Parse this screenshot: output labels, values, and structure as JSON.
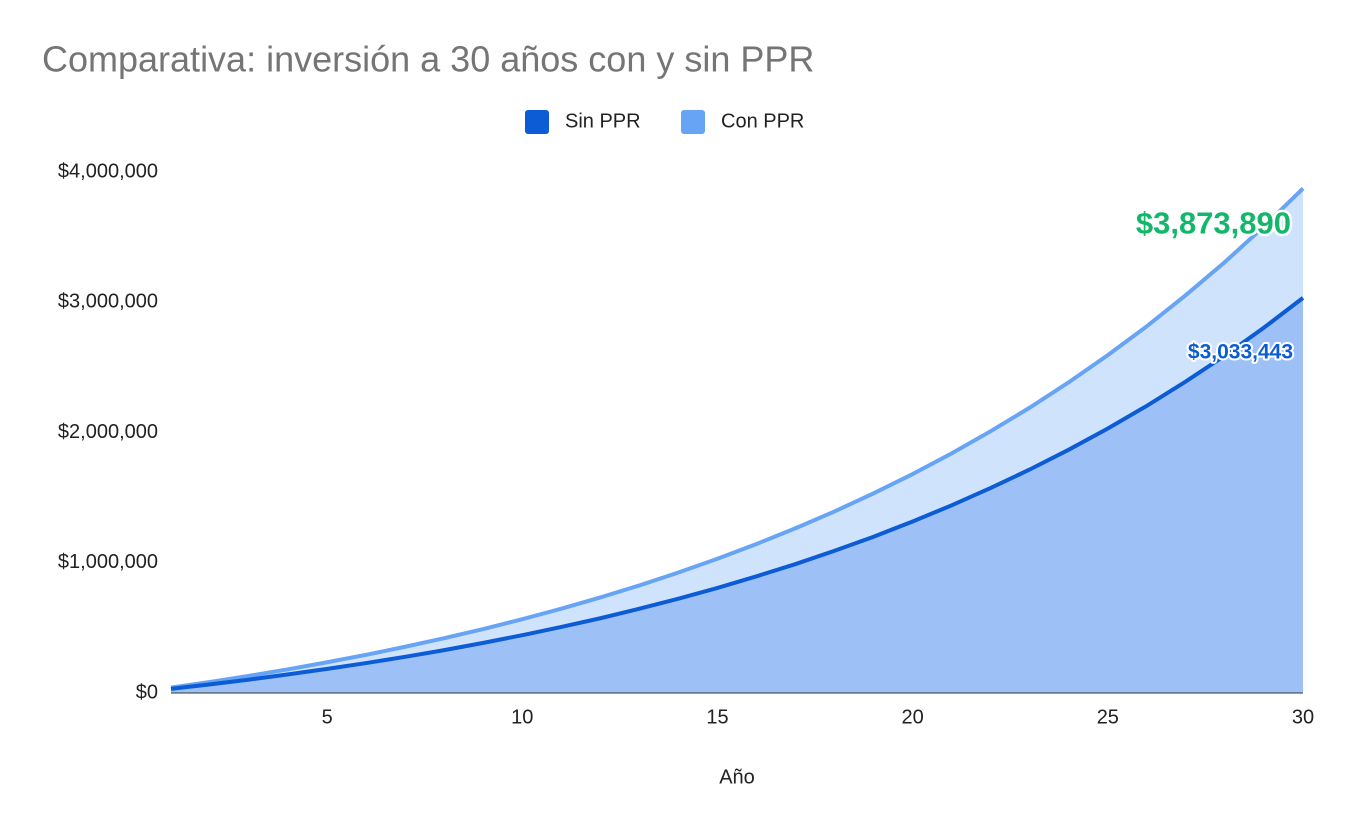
{
  "chart_data": {
    "type": "area",
    "title": "Comparativa: inversión a 30 años con y sin PPR",
    "x_label": "Año",
    "x": [
      1,
      2,
      3,
      4,
      5,
      6,
      7,
      8,
      9,
      10,
      11,
      12,
      13,
      14,
      15,
      16,
      17,
      18,
      19,
      20,
      21,
      22,
      23,
      24,
      25,
      26,
      27,
      28,
      29,
      30
    ],
    "xlim": [
      1,
      30
    ],
    "xticks": [
      5,
      10,
      15,
      20,
      25,
      30
    ],
    "ylim": [
      0,
      4000000
    ],
    "yticks": [
      {
        "value": 0,
        "label": "$0"
      },
      {
        "value": 1000000,
        "label": "$1,000,000"
      },
      {
        "value": 2000000,
        "label": "$2,000,000"
      },
      {
        "value": 3000000,
        "label": "$3,000,000"
      },
      {
        "value": 4000000,
        "label": "$4,000,000"
      }
    ],
    "legend": "top",
    "series": [
      {
        "name": "Sin PPR",
        "color": "#0b5cd5",
        "fill": "#9dc1f6",
        "label_color": "#0b5cd5",
        "values": [
          32000,
          66000,
          103000,
          143000,
          185000,
          230000,
          278000,
          329000,
          385000,
          444000,
          507000,
          574000,
          647000,
          724000,
          807000,
          896000,
          990000,
          1092000,
          1200000,
          1317000,
          1441000,
          1574000,
          1716000,
          1868000,
          2031000,
          2205000,
          2392000,
          2591000,
          2805000,
          3033443
        ],
        "value_labels": [
          null,
          null,
          null,
          null,
          null,
          null,
          null,
          null,
          null,
          null,
          null,
          null,
          null,
          null,
          null,
          null,
          null,
          null,
          null,
          null,
          null,
          null,
          null,
          null,
          null,
          null,
          null,
          null,
          null,
          "$3,033,443"
        ]
      },
      {
        "name": "Con PPR",
        "color": "#68a4f6",
        "fill": "#d0e3fd",
        "label_color": "#12b76a",
        "values": [
          41000,
          85000,
          132000,
          182000,
          236000,
          293000,
          355000,
          421000,
          491000,
          567000,
          647000,
          734000,
          826000,
          925000,
          1031000,
          1144000,
          1265000,
          1394000,
          1533000,
          1681000,
          1840000,
          2010000,
          2191000,
          2386000,
          2594000,
          2816000,
          3055000,
          3309000,
          3582000,
          3873890
        ],
        "value_labels": [
          null,
          null,
          null,
          null,
          null,
          null,
          null,
          null,
          null,
          null,
          null,
          null,
          null,
          null,
          null,
          null,
          null,
          null,
          null,
          null,
          null,
          null,
          null,
          null,
          null,
          null,
          null,
          null,
          null,
          "$3,873,890"
        ]
      }
    ]
  }
}
